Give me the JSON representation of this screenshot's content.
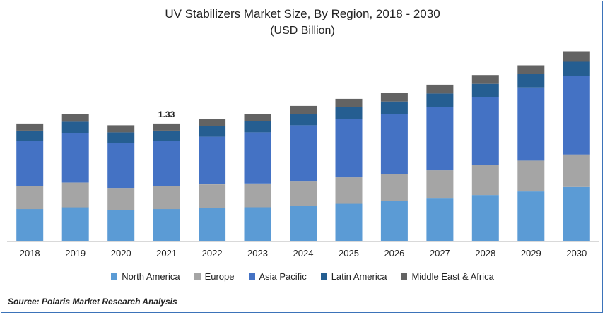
{
  "chart_data": {
    "type": "bar",
    "stacked": true,
    "title": "UV Stabilizers Market Size, By Region, 2018 - 2030",
    "subtitle": "(USD Billion)",
    "categories": [
      "2018",
      "2019",
      "2020",
      "2021",
      "2022",
      "2023",
      "2024",
      "2025",
      "2026",
      "2027",
      "2028",
      "2029",
      "2030"
    ],
    "series": [
      {
        "name": "North America",
        "color": "#5b9bd5",
        "values": [
          0.36,
          0.38,
          0.35,
          0.36,
          0.37,
          0.38,
          0.4,
          0.42,
          0.45,
          0.48,
          0.52,
          0.56,
          0.61
        ]
      },
      {
        "name": "Europe",
        "color": "#a5a5a5",
        "values": [
          0.26,
          0.28,
          0.25,
          0.26,
          0.27,
          0.27,
          0.28,
          0.3,
          0.31,
          0.32,
          0.34,
          0.35,
          0.37
        ]
      },
      {
        "name": "Asia Pacific",
        "color": "#4472c4",
        "values": [
          0.51,
          0.56,
          0.51,
          0.51,
          0.54,
          0.58,
          0.63,
          0.66,
          0.68,
          0.72,
          0.77,
          0.83,
          0.89
        ]
      },
      {
        "name": "Latin America",
        "color": "#255e91",
        "values": [
          0.12,
          0.13,
          0.12,
          0.12,
          0.12,
          0.13,
          0.13,
          0.14,
          0.14,
          0.15,
          0.15,
          0.15,
          0.16
        ]
      },
      {
        "name": "Middle East & Africa",
        "color": "#636363",
        "values": [
          0.08,
          0.09,
          0.08,
          0.08,
          0.08,
          0.08,
          0.09,
          0.09,
          0.1,
          0.1,
          0.1,
          0.1,
          0.12
        ]
      }
    ],
    "annotations": [
      {
        "category": "2021",
        "text": "1.33"
      }
    ],
    "ylim": [
      0,
      2.25
    ],
    "xlabel": "",
    "ylabel": "",
    "grid": false,
    "legend_position": "bottom"
  },
  "source": "Source: Polaris  Market Research Analysis"
}
